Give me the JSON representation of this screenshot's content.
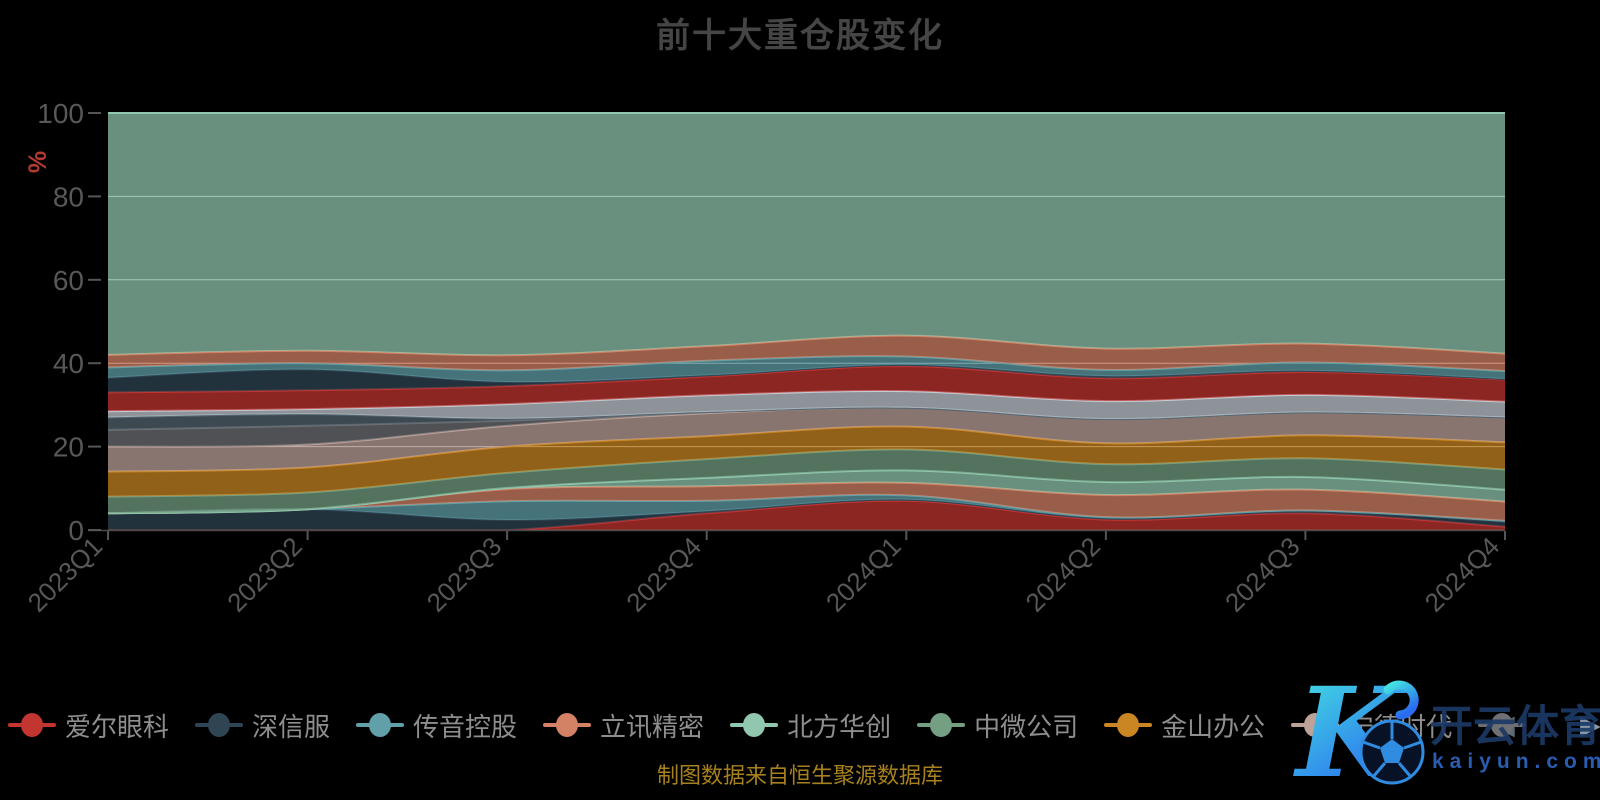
{
  "title": {
    "text": "前十大重仓股变化"
  },
  "caption": {
    "text": "制图数据来自恒生聚源数据库"
  },
  "watermark": {
    "logo_letter": "K",
    "brand": "开云体育",
    "domain": "kaiyun.com"
  },
  "legend": {
    "prev_arrow": "◀",
    "next_arrow": "▶",
    "items": [
      {
        "label": "爱尔眼科",
        "color": "#c23531"
      },
      {
        "label": "深信服",
        "color": "#2f4554"
      },
      {
        "label": "传音控股",
        "color": "#61a0a8"
      },
      {
        "label": "立讯精密",
        "color": "#d48265"
      },
      {
        "label": "北方华创",
        "color": "#91c7ae"
      },
      {
        "label": "中微公司",
        "color": "#749f83"
      },
      {
        "label": "金山办公",
        "color": "#ca8622"
      },
      {
        "label": "宁德时代",
        "color": "#bda29a"
      },
      {
        "label": "",
        "color": "#6e7074"
      }
    ]
  },
  "chart_data": {
    "type": "area",
    "stacked": true,
    "grid_on": true,
    "x": [
      "2023Q1",
      "2023Q2",
      "2023Q3",
      "2023Q4",
      "2024Q1",
      "2024Q2",
      "2024Q3",
      "2024Q4"
    ],
    "ylabel": "%",
    "ylim": [
      0,
      100
    ],
    "yticks": [
      0,
      20,
      40,
      60,
      80,
      100
    ],
    "fill_opacity": 0.72,
    "gridline_color": "#cccccc",
    "axis_label_color": "#585858",
    "ylabel_color": "#b23a31",
    "series": [
      {
        "name": "爱尔眼科",
        "color": "#c23531",
        "values": [
          0,
          0,
          0,
          4,
          7,
          2.5,
          4,
          0.8
        ]
      },
      {
        "name": "深信服",
        "color": "#2f4554",
        "values": [
          4,
          5,
          2.4,
          0.5,
          0.3,
          0.3,
          0.5,
          1.2
        ]
      },
      {
        "name": "传音控股",
        "color": "#61a0a8",
        "values": [
          0,
          0,
          4.5,
          2.5,
          1,
          0.3,
          0.2,
          0.2
        ]
      },
      {
        "name": "立讯精密",
        "color": "#d48265",
        "values": [
          0,
          0,
          2.9,
          3.5,
          3,
          5.3,
          5,
          4.6
        ]
      },
      {
        "name": "北方华创",
        "color": "#91c7ae",
        "values": [
          0,
          0,
          0.3,
          2,
          3,
          3.1,
          3,
          2.9
        ]
      },
      {
        "name": "中微公司",
        "color": "#749f83",
        "values": [
          4,
          4,
          3.6,
          4.5,
          5,
          4.3,
          4.5,
          4.8
        ]
      },
      {
        "name": "金山办公",
        "color": "#ca8622",
        "values": [
          6,
          6,
          6.3,
          5.5,
          5.5,
          5,
          5.5,
          6.5
        ]
      },
      {
        "name": "宁德时代",
        "color": "#bda29a",
        "values": [
          6,
          5.5,
          5,
          5.5,
          4.5,
          5.8,
          5.5,
          6
        ]
      },
      {
        "name": "",
        "color": "#6e7074",
        "values": [
          4,
          4.5,
          1.2,
          0.3,
          0,
          0,
          0,
          0
        ]
      },
      {
        "name": "",
        "color": "#546570",
        "values": [
          3,
          2.8,
          0.5,
          0,
          0,
          0,
          0,
          0
        ]
      },
      {
        "name": "",
        "color": "#c4ccd3",
        "values": [
          1.5,
          1.2,
          3.5,
          4,
          4,
          4.3,
          4.2,
          3.8
        ]
      },
      {
        "name": "",
        "color": "#c23531",
        "values": [
          4.5,
          4.5,
          4.3,
          4.5,
          6,
          5.5,
          5.5,
          5.3
        ]
      },
      {
        "name": "",
        "color": "#2f4554",
        "values": [
          3.5,
          5,
          1,
          0.3,
          0.3,
          0.5,
          0.3,
          0.1
        ]
      },
      {
        "name": "",
        "color": "#61a0a8",
        "values": [
          2.5,
          1.5,
          2.8,
          3.5,
          2,
          1.5,
          2,
          1.9
        ]
      },
      {
        "name": "",
        "color": "#d48265",
        "values": [
          3,
          3,
          3.6,
          3.5,
          5,
          5.1,
          4.5,
          4.2
        ]
      },
      {
        "name": "",
        "color": "#91c7ae",
        "values": [
          58,
          57,
          58.1,
          55.9,
          53.4,
          56.5,
          55.3,
          57.7
        ]
      }
    ]
  }
}
